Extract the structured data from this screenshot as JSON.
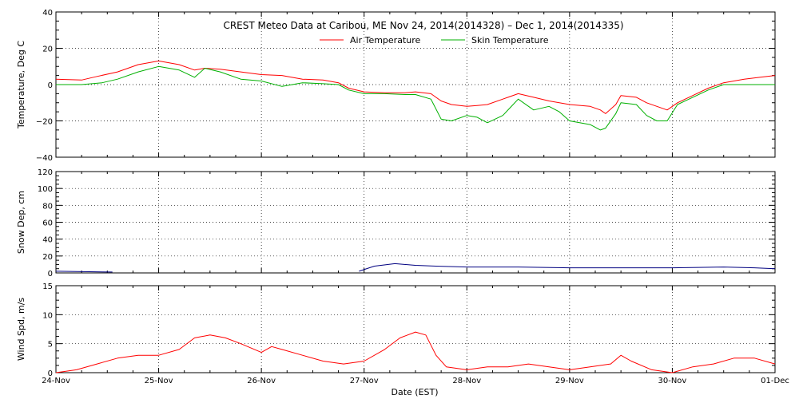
{
  "chart_data": {
    "type": "line",
    "title": "CREST Meteo Data at Caribou, ME   Nov 24, 2014(2014328) – Dec  1, 2014(2014335)",
    "xlabel": "Date (EST)",
    "x_ticks": [
      "24-Nov",
      "25-Nov",
      "26-Nov",
      "27-Nov",
      "28-Nov",
      "29-Nov",
      "30-Nov",
      "01-Dec"
    ],
    "grid": true,
    "legend_position": "top-center",
    "panels": [
      {
        "ylabel": "Temperature, Deg C",
        "ylim": [
          -40,
          40
        ],
        "y_ticks": [
          "40",
          "20",
          "0",
          "−20",
          "−40"
        ],
        "series": [
          {
            "name": "Air Temperature",
            "color": "#ff0000",
            "points": [
              [
                0,
                3
              ],
              [
                0.25,
                2.5
              ],
              [
                0.4,
                4.5
              ],
              [
                0.6,
                7
              ],
              [
                0.8,
                11
              ],
              [
                1.0,
                13
              ],
              [
                1.2,
                11
              ],
              [
                1.35,
                8
              ],
              [
                1.45,
                9
              ],
              [
                1.6,
                8.5
              ],
              [
                1.8,
                7
              ],
              [
                2.0,
                5.5
              ],
              [
                2.2,
                5
              ],
              [
                2.4,
                3
              ],
              [
                2.6,
                2.5
              ],
              [
                2.75,
                1
              ],
              [
                2.85,
                -2
              ],
              [
                3.0,
                -4
              ],
              [
                3.2,
                -4.5
              ],
              [
                3.4,
                -4.5
              ],
              [
                3.5,
                -4
              ],
              [
                3.65,
                -5
              ],
              [
                3.75,
                -9
              ],
              [
                3.85,
                -11
              ],
              [
                4.0,
                -12
              ],
              [
                4.1,
                -11.5
              ],
              [
                4.2,
                -11
              ],
              [
                4.35,
                -8
              ],
              [
                4.5,
                -5
              ],
              [
                4.65,
                -7
              ],
              [
                4.8,
                -9
              ],
              [
                5.0,
                -11
              ],
              [
                5.2,
                -12
              ],
              [
                5.3,
                -14
              ],
              [
                5.35,
                -16
              ],
              [
                5.45,
                -11
              ],
              [
                5.5,
                -6
              ],
              [
                5.65,
                -7
              ],
              [
                5.75,
                -10
              ],
              [
                5.85,
                -12
              ],
              [
                5.95,
                -14
              ],
              [
                6.05,
                -10
              ],
              [
                6.2,
                -6
              ],
              [
                6.35,
                -2
              ],
              [
                6.5,
                1
              ],
              [
                6.7,
                3
              ],
              [
                6.85,
                4
              ],
              [
                7.0,
                5
              ]
            ]
          },
          {
            "name": "Skin Temperature",
            "color": "#00b000",
            "points": [
              [
                0,
                0
              ],
              [
                0.25,
                0
              ],
              [
                0.45,
                1
              ],
              [
                0.6,
                3
              ],
              [
                0.8,
                7
              ],
              [
                1.0,
                10
              ],
              [
                1.2,
                8
              ],
              [
                1.35,
                4
              ],
              [
                1.45,
                9
              ],
              [
                1.6,
                7
              ],
              [
                1.8,
                3
              ],
              [
                2.0,
                2
              ],
              [
                2.2,
                -1
              ],
              [
                2.4,
                1
              ],
              [
                2.6,
                0.5
              ],
              [
                2.75,
                0
              ],
              [
                2.85,
                -3
              ],
              [
                3.0,
                -5
              ],
              [
                3.2,
                -5
              ],
              [
                3.4,
                -5.5
              ],
              [
                3.5,
                -5.5
              ],
              [
                3.65,
                -8
              ],
              [
                3.75,
                -19
              ],
              [
                3.85,
                -20
              ],
              [
                4.0,
                -17
              ],
              [
                4.1,
                -18
              ],
              [
                4.2,
                -21
              ],
              [
                4.35,
                -17
              ],
              [
                4.5,
                -8
              ],
              [
                4.65,
                -14
              ],
              [
                4.8,
                -12
              ],
              [
                4.9,
                -15
              ],
              [
                5.0,
                -20
              ],
              [
                5.2,
                -22
              ],
              [
                5.3,
                -25
              ],
              [
                5.35,
                -24
              ],
              [
                5.45,
                -16
              ],
              [
                5.5,
                -10
              ],
              [
                5.65,
                -11
              ],
              [
                5.75,
                -17
              ],
              [
                5.85,
                -20
              ],
              [
                5.95,
                -20
              ],
              [
                6.05,
                -11
              ],
              [
                6.2,
                -7
              ],
              [
                6.35,
                -3
              ],
              [
                6.5,
                0
              ],
              [
                6.7,
                0
              ],
              [
                6.85,
                0
              ],
              [
                7.0,
                0
              ]
            ]
          }
        ]
      },
      {
        "ylabel": "Snow Dep, cm",
        "ylim": [
          0,
          120
        ],
        "y_ticks": [
          "120",
          "100",
          "80",
          "60",
          "40",
          "20",
          "0"
        ],
        "series": [
          {
            "color": "#000080",
            "points": [
              [
                0,
                2
              ],
              [
                0.55,
                1
              ],
              [
                0.6,
                null
              ],
              [
                2.9,
                null
              ],
              [
                2.95,
                2
              ],
              [
                3.1,
                8
              ],
              [
                3.3,
                11
              ],
              [
                3.5,
                9
              ],
              [
                3.7,
                8
              ],
              [
                4.0,
                7
              ],
              [
                4.5,
                7
              ],
              [
                5.0,
                6
              ],
              [
                5.5,
                6
              ],
              [
                6.0,
                6
              ],
              [
                6.5,
                7
              ],
              [
                6.8,
                6
              ],
              [
                7.0,
                5
              ]
            ]
          }
        ]
      },
      {
        "ylabel": "Wind Spd, m/s",
        "ylim": [
          0,
          15
        ],
        "y_ticks": [
          "15",
          "10",
          "5",
          "0"
        ],
        "series": [
          {
            "color": "#ff0000",
            "points": [
              [
                0,
                0
              ],
              [
                0.2,
                0.5
              ],
              [
                0.4,
                1.5
              ],
              [
                0.6,
                2.5
              ],
              [
                0.8,
                3
              ],
              [
                1.0,
                3
              ],
              [
                1.2,
                4
              ],
              [
                1.35,
                6
              ],
              [
                1.5,
                6.5
              ],
              [
                1.65,
                6
              ],
              [
                1.8,
                5
              ],
              [
                2.0,
                3.5
              ],
              [
                2.1,
                4.5
              ],
              [
                2.2,
                4
              ],
              [
                2.4,
                3
              ],
              [
                2.6,
                2
              ],
              [
                2.8,
                1.5
              ],
              [
                3.0,
                2
              ],
              [
                3.2,
                4
              ],
              [
                3.35,
                6
              ],
              [
                3.5,
                7
              ],
              [
                3.6,
                6.5
              ],
              [
                3.7,
                3
              ],
              [
                3.8,
                1
              ],
              [
                4.0,
                0.5
              ],
              [
                4.2,
                1
              ],
              [
                4.4,
                1
              ],
              [
                4.6,
                1.5
              ],
              [
                4.8,
                1
              ],
              [
                5.0,
                0.5
              ],
              [
                5.2,
                1
              ],
              [
                5.4,
                1.5
              ],
              [
                5.5,
                3
              ],
              [
                5.6,
                2
              ],
              [
                5.8,
                0.5
              ],
              [
                6.0,
                0
              ],
              [
                6.2,
                1
              ],
              [
                6.4,
                1.5
              ],
              [
                6.6,
                2.5
              ],
              [
                6.8,
                2.5
              ],
              [
                7.0,
                1.5
              ]
            ]
          }
        ]
      }
    ]
  }
}
